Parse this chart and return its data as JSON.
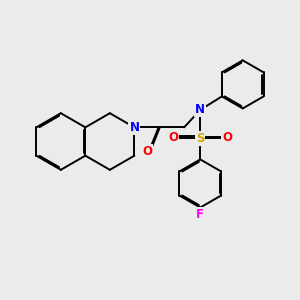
{
  "background_color": "#ebebeb",
  "bond_color": "#000000",
  "bond_width": 1.4,
  "atom_colors": {
    "N": "#0000ff",
    "O": "#ff0000",
    "S": "#ccaa00",
    "F": "#ff00ff",
    "C": "#000000"
  },
  "font_size_atom": 8.5
}
